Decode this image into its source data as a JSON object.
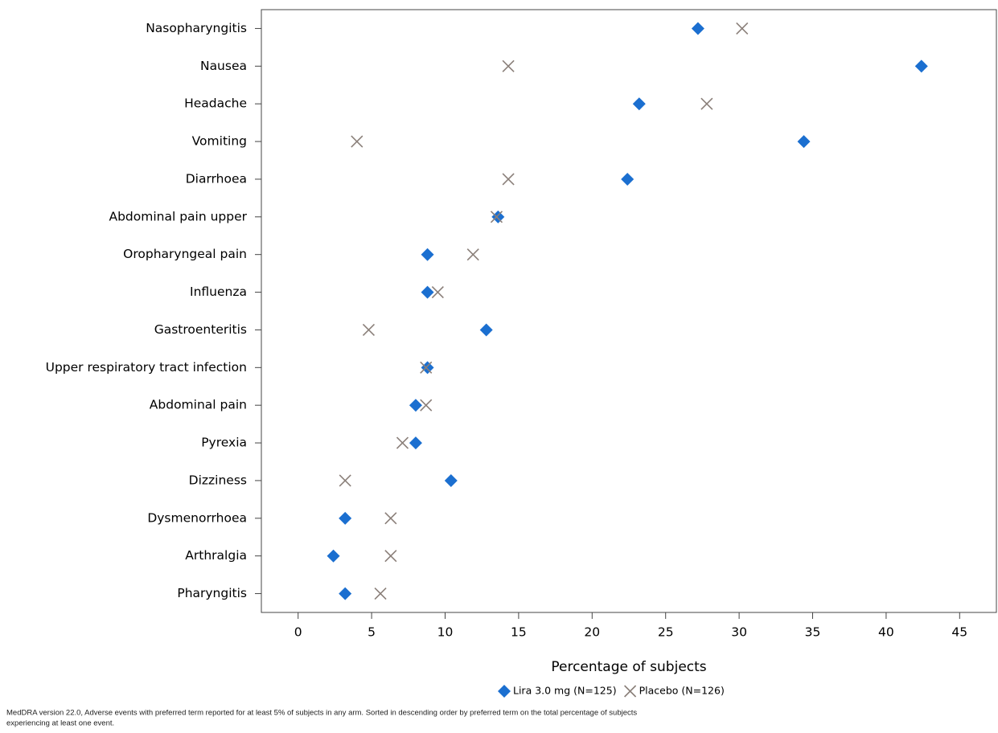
{
  "chart_data": {
    "type": "dot",
    "x_label": "Percentage of subjects",
    "categories": [
      "Nasopharyngitis",
      "Nausea",
      "Headache",
      "Vomiting",
      "Diarrhoea",
      "Abdominal pain upper",
      "Oropharyngeal pain",
      "Influenza",
      "Gastroenteritis",
      "Upper respiratory tract infection",
      "Abdominal pain",
      "Pyrexia",
      "Dizziness",
      "Dysmenorrhoea",
      "Arthralgia",
      "Pharyngitis"
    ],
    "series": [
      {
        "name": "Lira 3.0 mg (N=125)",
        "color": "#1b6fd0",
        "marker": "diamond",
        "values": [
          27.2,
          42.4,
          23.2,
          34.4,
          22.4,
          13.6,
          8.8,
          8.8,
          12.8,
          8.8,
          8.0,
          8.0,
          10.4,
          3.2,
          2.4,
          3.2
        ]
      },
      {
        "name": "Placebo (N=126)",
        "color": "#8a7f79",
        "marker": "x",
        "values": [
          30.2,
          14.3,
          27.8,
          4.0,
          14.3,
          13.5,
          11.9,
          9.5,
          4.8,
          8.7,
          8.7,
          7.1,
          3.2,
          6.3,
          6.3,
          5.6
        ]
      }
    ],
    "xlim": [
      -2.5,
      47.5
    ],
    "xticks": [
      0,
      5,
      10,
      15,
      20,
      25,
      30,
      35,
      40,
      45
    ],
    "grid": false,
    "legend": "bottom",
    "footnote": [
      "MedDRA version 22.0,  Adverse events with preferred term reported for at least 5% of subjects in any arm. Sorted in descending order by preferred term on the total percentage of subjects",
      "experiencing at least one event."
    ]
  }
}
